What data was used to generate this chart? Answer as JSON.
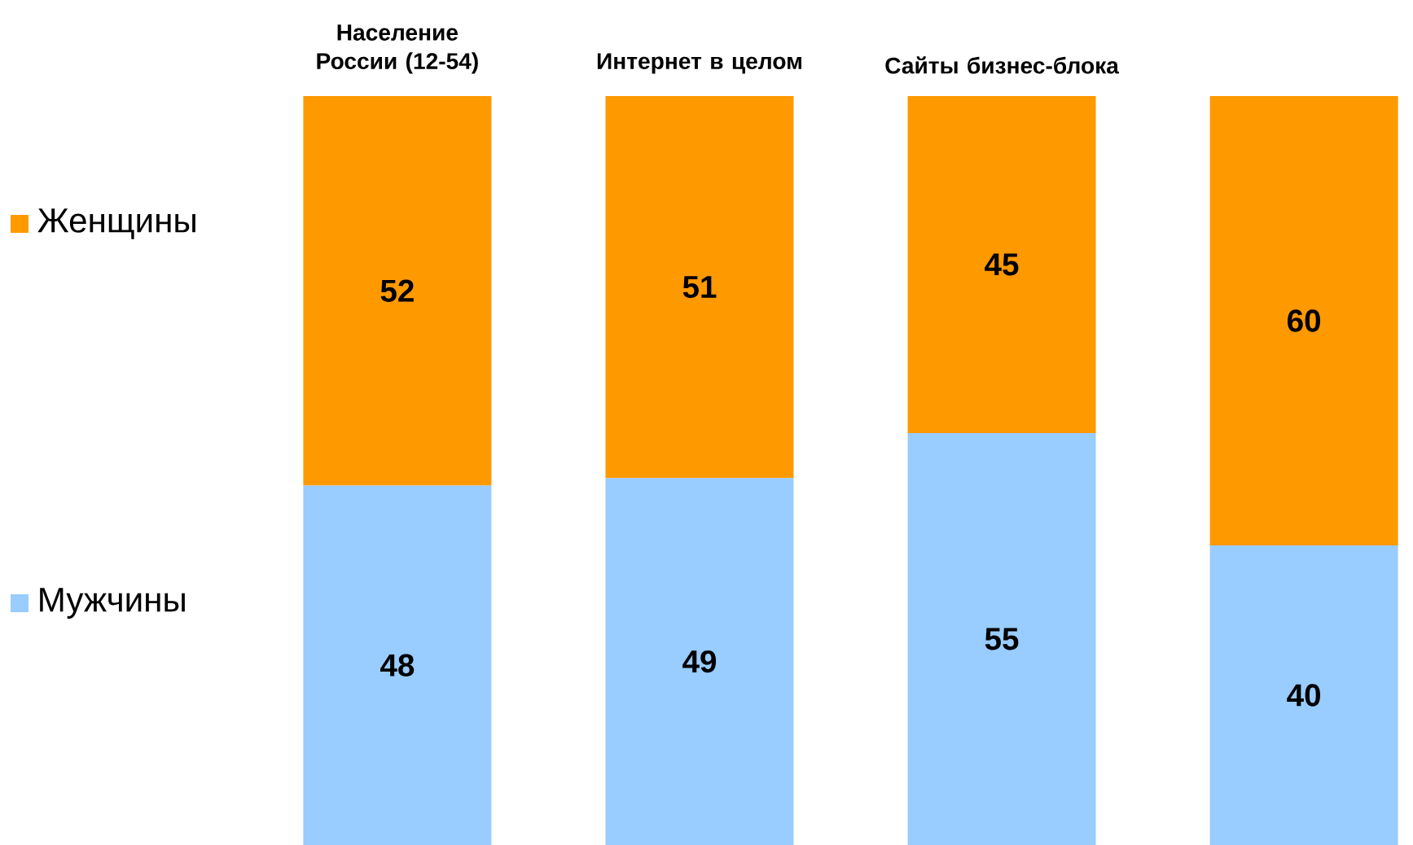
{
  "chart_data": {
    "type": "bar",
    "stacked": true,
    "categories": [
      "Население России (12-54)",
      "Интернет в целом",
      "Сайты бизнес-блока",
      null
    ],
    "series": [
      {
        "name": "Мужчины",
        "color": "#99ccff",
        "values": [
          48,
          49,
          55,
          40
        ]
      },
      {
        "name": "Женщины",
        "color": "#ff9900",
        "values": [
          52,
          51,
          45,
          60
        ]
      }
    ],
    "tick_labels": "x",
    "data_labels": true,
    "legend": "left"
  }
}
